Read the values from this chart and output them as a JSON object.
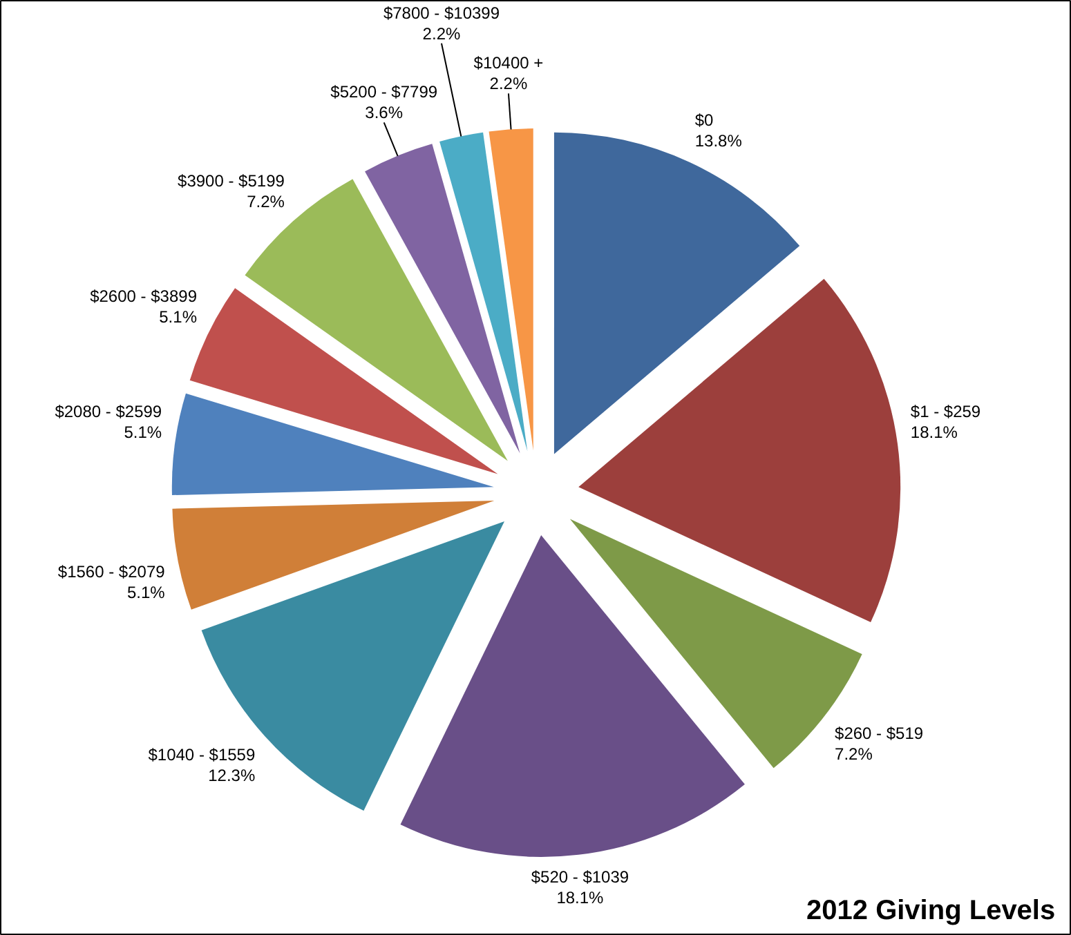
{
  "chart_data": {
    "type": "pie",
    "title": "2012 Giving Levels",
    "categories": [
      "$0",
      "$1 - $259",
      "$260 - $519",
      "$520 - $1039",
      "$1040 - $1559",
      "$1560 - $2079",
      "$2080 - $2599",
      "$2600 - $3899",
      "$3900 - $5199",
      "$5200 - $7799",
      "$7800 - $10399",
      "$10400 +"
    ],
    "values": [
      13.8,
      18.1,
      7.2,
      18.1,
      12.3,
      5.1,
      5.1,
      5.1,
      7.2,
      3.6,
      2.2,
      2.2
    ],
    "value_labels": [
      "13.8%",
      "18.1%",
      "7.2%",
      "18.1%",
      "12.3%",
      "5.1%",
      "5.1%",
      "5.1%",
      "7.2%",
      "3.6%",
      "2.2%",
      "2.2%"
    ],
    "colors": [
      "#3f689c",
      "#9c3f3c",
      "#7e9a48",
      "#694f88",
      "#3a8ba1",
      "#d07f38",
      "#4f81bd",
      "#c0504d",
      "#9bbb59",
      "#8064a2",
      "#4bacc6",
      "#f79646"
    ]
  }
}
